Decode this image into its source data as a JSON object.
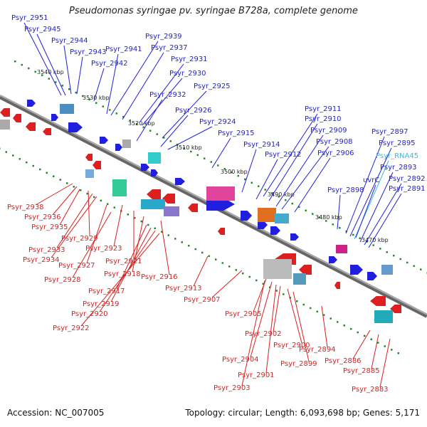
{
  "title": "Pseudomonas syringae pv. syringae B728a, complete genome",
  "footer": {
    "accession": "Accession: NC_007005",
    "topology": "Topology: circular; Length: 6,093,698 bp; Genes: 5,171"
  },
  "colors": {
    "plus_strand": "#1f1fdd",
    "minus_strand": "#dd1f1f",
    "rna": "#33bbdd",
    "backbone": "#888888",
    "ticks": "#2a8a2a"
  },
  "scale_labels": [
    "3540 kbp",
    "3530 kbp",
    "3520 kbp",
    "3510 kbp",
    "3500 kbp",
    "3490 kbp",
    "3480 kbp",
    "3470 kbp"
  ],
  "upper_labels": [
    {
      "text": "Psyr_2951",
      "kind": "gene"
    },
    {
      "text": "Psyr_2945",
      "kind": "gene"
    },
    {
      "text": "Psyr_2944",
      "kind": "gene"
    },
    {
      "text": "Psyr_2943",
      "kind": "gene"
    },
    {
      "text": "Psyr_2941",
      "kind": "gene"
    },
    {
      "text": "Psyr_2939",
      "kind": "gene"
    },
    {
      "text": "Psyr_2937",
      "kind": "gene"
    },
    {
      "text": "Psyr_2942",
      "kind": "gene"
    },
    {
      "text": "Psyr_2931",
      "kind": "gene"
    },
    {
      "text": "Psyr_2930",
      "kind": "gene"
    },
    {
      "text": "Psyr_2932",
      "kind": "gene"
    },
    {
      "text": "Psyr_2925",
      "kind": "gene"
    },
    {
      "text": "Psyr_2926",
      "kind": "gene"
    },
    {
      "text": "Psyr_2924",
      "kind": "gene"
    },
    {
      "text": "Psyr_2915",
      "kind": "gene"
    },
    {
      "text": "Psyr_2914",
      "kind": "gene"
    },
    {
      "text": "Psyr_2911",
      "kind": "gene"
    },
    {
      "text": "Psyr_2910",
      "kind": "gene"
    },
    {
      "text": "Psyr_2909",
      "kind": "gene"
    },
    {
      "text": "Psyr_2912",
      "kind": "gene"
    },
    {
      "text": "Psyr_2908",
      "kind": "gene"
    },
    {
      "text": "Psyr_2906",
      "kind": "gene"
    },
    {
      "text": "Psyr_2898",
      "kind": "gene"
    },
    {
      "text": "Psyr_2897",
      "kind": "gene"
    },
    {
      "text": "Psyr_2895",
      "kind": "gene"
    },
    {
      "text": "Psyr_RNA45",
      "kind": "rna"
    },
    {
      "text": "uvrC",
      "kind": "gene"
    },
    {
      "text": "Psyr_2893",
      "kind": "gene"
    },
    {
      "text": "Psyr_2892",
      "kind": "gene"
    },
    {
      "text": "Psyr_2891",
      "kind": "gene"
    }
  ],
  "lower_labels": [
    {
      "text": "Psyr_2938"
    },
    {
      "text": "Psyr_2936"
    },
    {
      "text": "Psyr_2935"
    },
    {
      "text": "Psyr_2929"
    },
    {
      "text": "Psyr_2933"
    },
    {
      "text": "Psyr_2934"
    },
    {
      "text": "Psyr_2923"
    },
    {
      "text": "Psyr_2927"
    },
    {
      "text": "Psyr_2921"
    },
    {
      "text": "Psyr_2928"
    },
    {
      "text": "Psyr_2918"
    },
    {
      "text": "Psyr_2916"
    },
    {
      "text": "Psyr_2917"
    },
    {
      "text": "Psyr_2913"
    },
    {
      "text": "Psyr_2919"
    },
    {
      "text": "Psyr_2907"
    },
    {
      "text": "Psyr_2920"
    },
    {
      "text": "Psyr_2905"
    },
    {
      "text": "Psyr_2922"
    },
    {
      "text": "Psyr_2902"
    },
    {
      "text": "Psyr_2900"
    },
    {
      "text": "Psyr_2894"
    },
    {
      "text": "Psyr_2904"
    },
    {
      "text": "Psyr_2899"
    },
    {
      "text": "Psyr_2886"
    },
    {
      "text": "Psyr_2901"
    },
    {
      "text": "Psyr_2885"
    },
    {
      "text": "Psyr_2903"
    },
    {
      "text": "Psyr_2883"
    }
  ]
}
